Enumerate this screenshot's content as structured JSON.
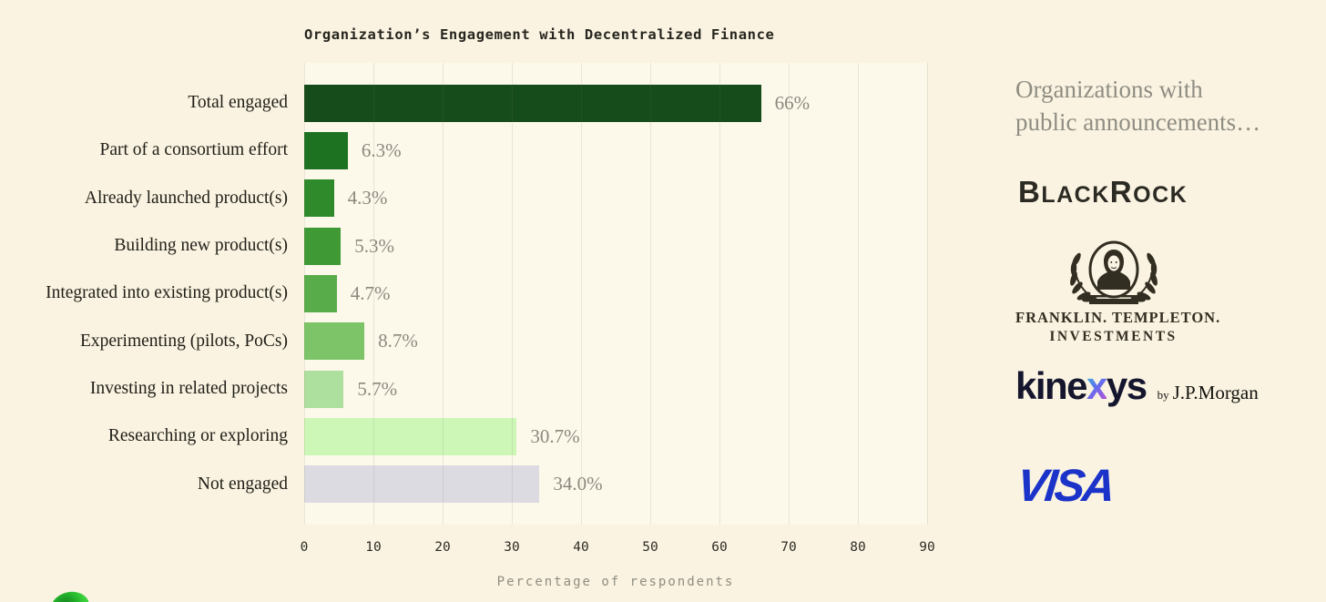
{
  "page": {
    "background": "#faf3e1"
  },
  "chart": {
    "title": "Organization’s Engagement with Decentralized Finance",
    "xlabel": "Percentage of respondents"
  },
  "chart_data": {
    "type": "bar",
    "orientation": "horizontal",
    "title": "Organization’s Engagement with Decentralized Finance",
    "xlabel": "Percentage of respondents",
    "ylabel": "",
    "categories": [
      "Total engaged",
      "Part of a consortium effort",
      "Already launched product(s)",
      "Building new product(s)",
      "Integrated into existing product(s)",
      "Experimenting (pilots, PoCs)",
      "Investing in related projects",
      "Researching or exploring",
      "Not engaged"
    ],
    "values": [
      66,
      6.3,
      4.3,
      5.3,
      4.7,
      8.7,
      5.7,
      30.7,
      34.0
    ],
    "value_labels": [
      "66%",
      "6.3%",
      "4.3%",
      "5.3%",
      "4.7%",
      "8.7%",
      "5.7%",
      "30.7%",
      "34.0%"
    ],
    "bar_colors": [
      "#164c1b",
      "#1d7222",
      "#2e8a2a",
      "#3f9a36",
      "#58ad4a",
      "#7cc467",
      "#addf9e",
      "#ccf7b7",
      "#dcdbe2"
    ],
    "xlim": [
      0,
      90
    ],
    "x_ticks": [
      0,
      10,
      20,
      30,
      40,
      50,
      60,
      70,
      80,
      90
    ],
    "grid": true,
    "legend": false,
    "plot_background": "#fcf8ea",
    "value_label_color": "#8b897e",
    "category_label_color": "#1f1e17"
  },
  "side_panel": {
    "heading": [
      "Organizations with",
      "public announcements…"
    ],
    "logos": {
      "blackrock": {
        "name": "BlackRock",
        "seg1": "B",
        "seg2": "LACK",
        "seg3": "R",
        "seg4": "OCK",
        "color": "#2b2a23"
      },
      "franklin_templeton": {
        "name": "Franklin Templeton Investments",
        "line1": "FRANKLIN. TEMPLETON.",
        "line2": "INVESTMENTS",
        "color": "#332e22"
      },
      "kinexys": {
        "name": "kinexys by J.P.Morgan",
        "pre": "kine",
        "x": "x",
        "post": "ys",
        "by": "by",
        "parent": "J.P.Morgan",
        "color": "#15162e",
        "x_gradient": [
          "#2fd4cf",
          "#5f6df0",
          "#c44fd0"
        ]
      },
      "visa": {
        "name": "Visa",
        "text": "VISA",
        "color": "#1b33c9"
      }
    }
  }
}
